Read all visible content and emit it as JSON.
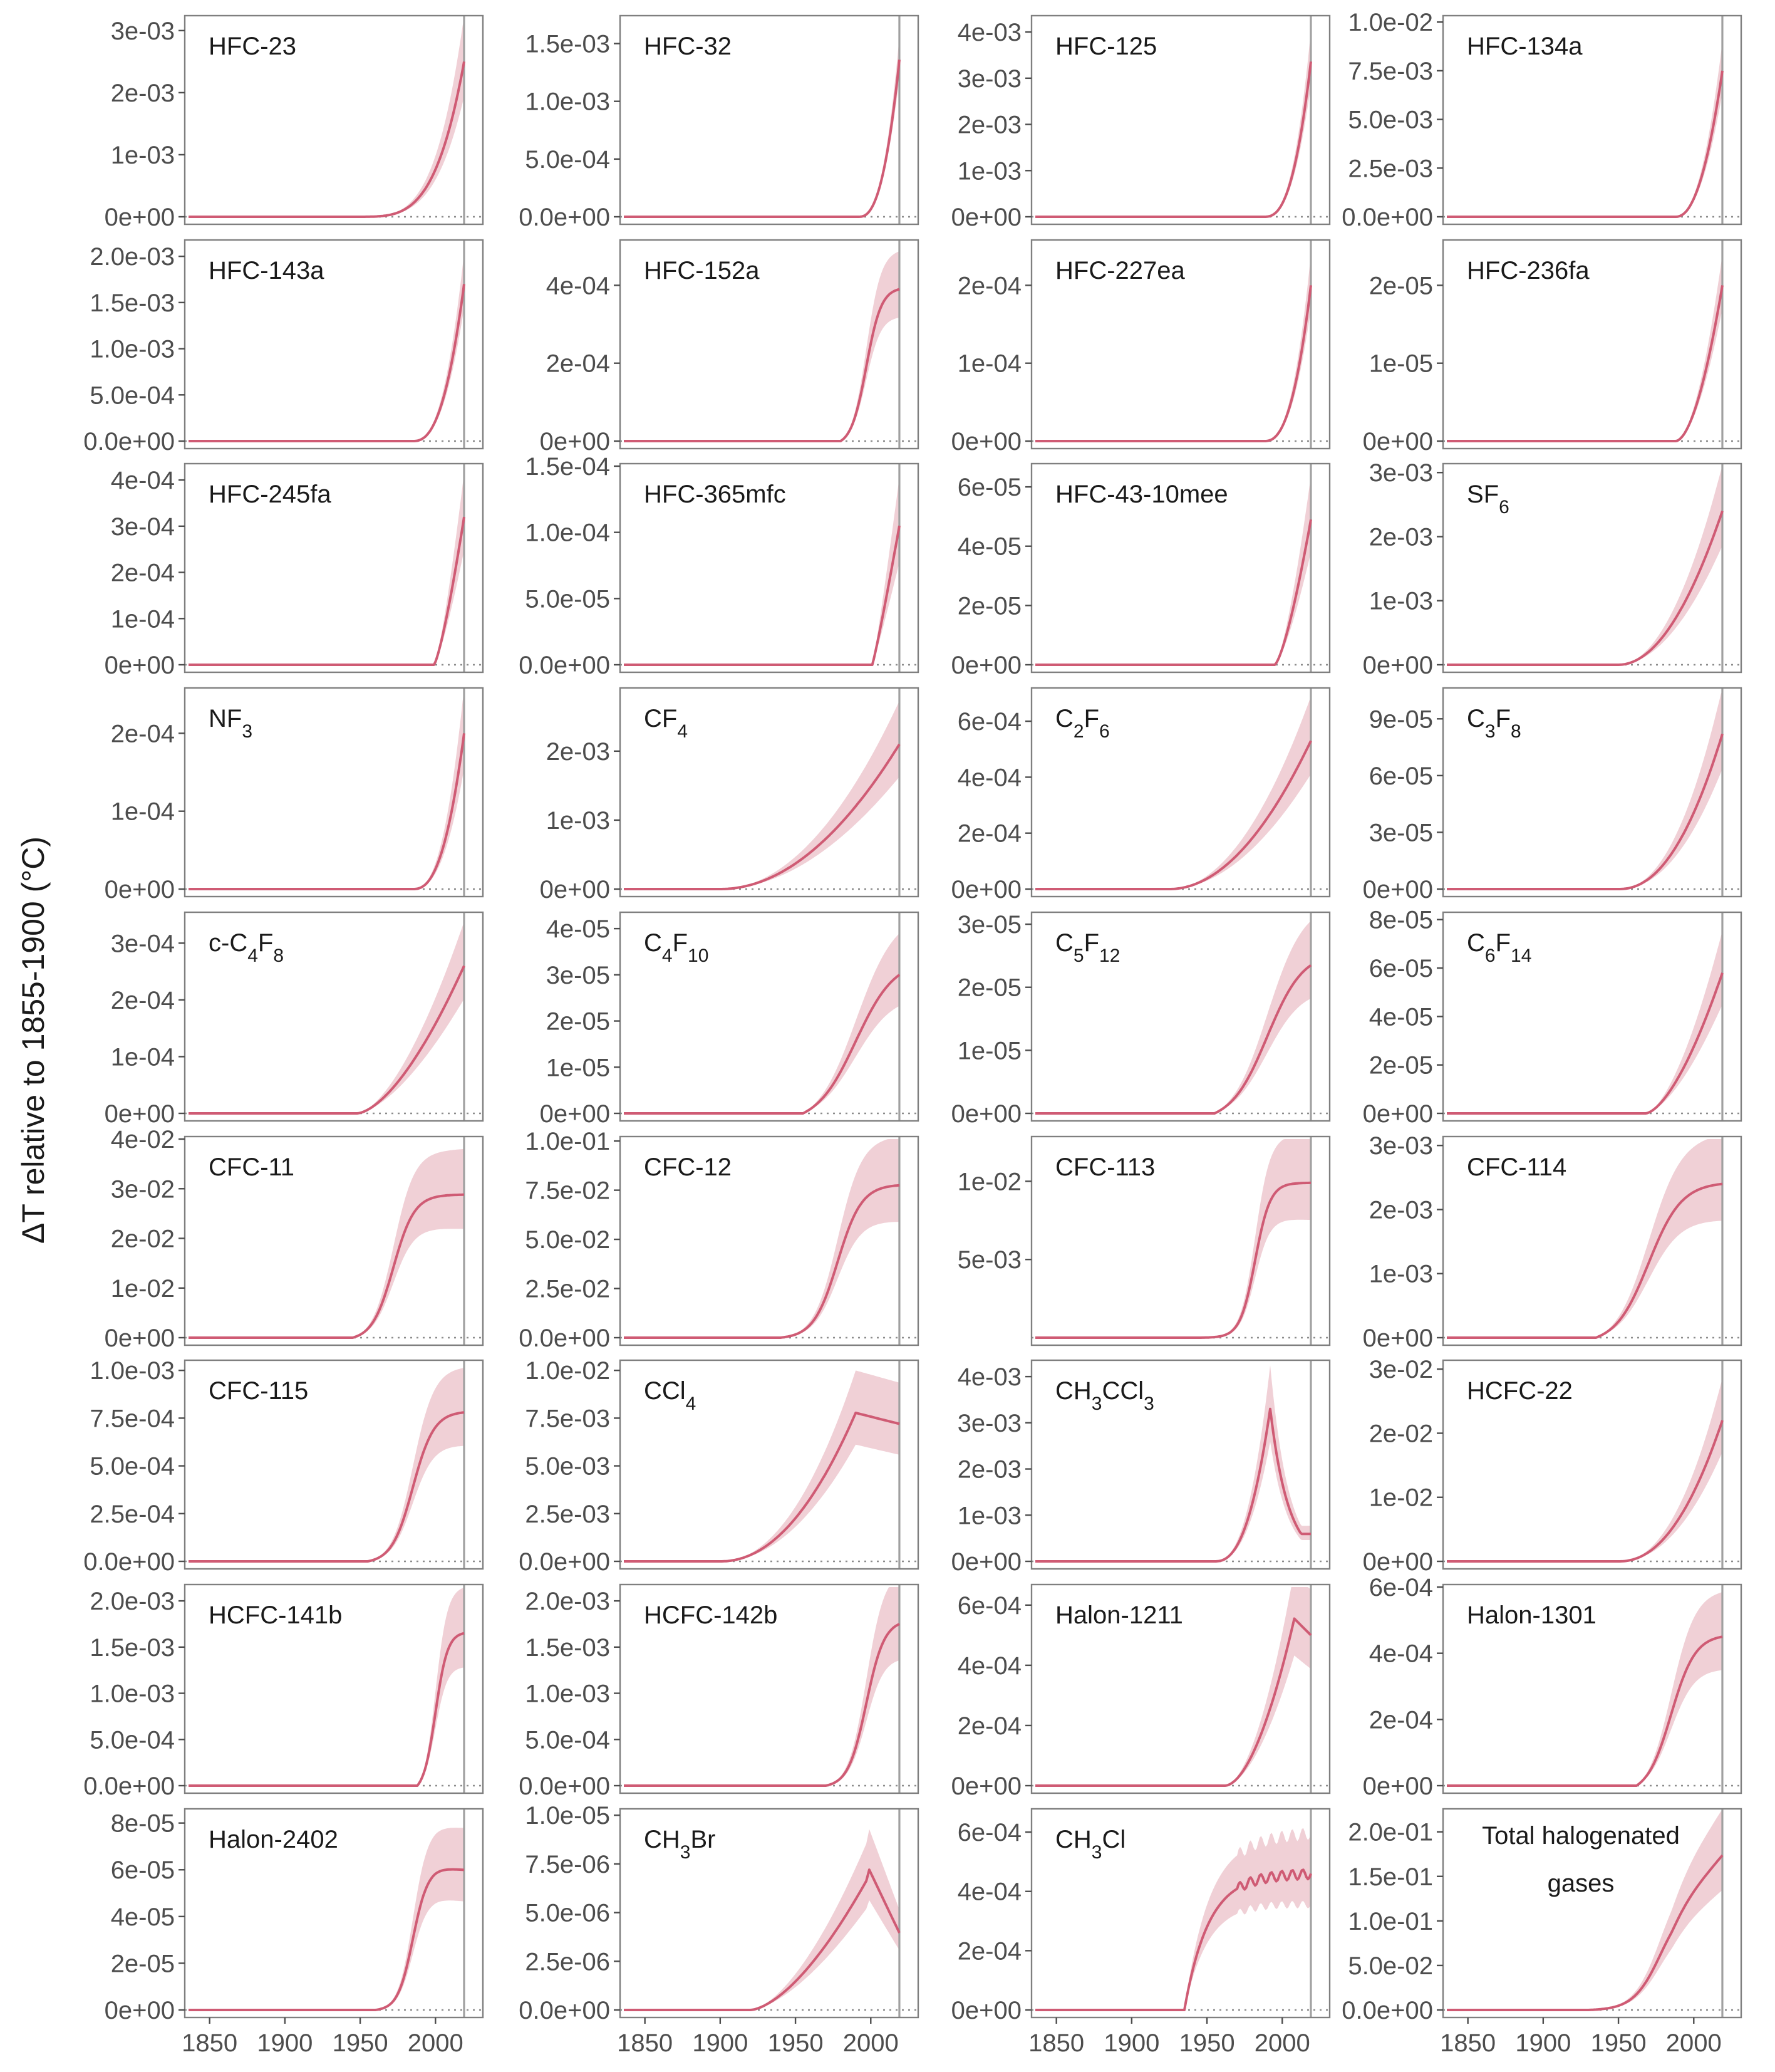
{
  "ylabel": "ΔT relative to 1855-1900 (°C)",
  "x_ticks": [
    "1850",
    "1900",
    "1950",
    "2000"
  ],
  "colors": {
    "band": "#d98a98",
    "line": "#cf5b74",
    "frame": "#7f7f7f",
    "text": "#4d4d4d"
  },
  "chart_data": [
    {
      "type": "line",
      "title": "HFC-23",
      "peak": 0.0025,
      "shape": "ramp",
      "start": 1945,
      "k": 4.0,
      "unc": 0.3,
      "yticks": [
        "0e+00",
        "1e-03",
        "2e-03",
        "3e-03"
      ],
      "ytick_values": [
        0,
        0.001,
        0.002,
        0.003
      ],
      "ylim": [
        0,
        0.0032
      ]
    },
    {
      "type": "line",
      "title": "HFC-32",
      "peak": 0.00136,
      "shape": "ramp",
      "start": 1992,
      "k": 2.5,
      "unc": 0.15,
      "yticks": [
        "0.0e+00",
        "5.0e-04",
        "1.0e-03",
        "1.5e-03"
      ],
      "ytick_values": [
        0,
        0.0005,
        0.001,
        0.0015
      ],
      "ylim": [
        0,
        0.00172
      ]
    },
    {
      "type": "line",
      "title": "HFC-125",
      "peak": 0.00336,
      "shape": "ramp",
      "start": 1988,
      "k": 2.6,
      "unc": 0.2,
      "yticks": [
        "0e+00",
        "1e-03",
        "2e-03",
        "3e-03",
        "4e-03"
      ],
      "ytick_values": [
        0,
        0.001,
        0.002,
        0.003,
        0.004
      ],
      "ylim": [
        0,
        0.0043
      ]
    },
    {
      "type": "line",
      "title": "HFC-134a",
      "peak": 0.0075,
      "shape": "ramp",
      "start": 1988,
      "k": 2.2,
      "unc": 0.2,
      "yticks": [
        "0.0e+00",
        "2.5e-03",
        "5.0e-03",
        "7.5e-03",
        "1.0e-02"
      ],
      "ytick_values": [
        0,
        0.0025,
        0.005,
        0.0075,
        0.01
      ],
      "ylim": [
        0,
        0.0102
      ]
    },
    {
      "type": "line",
      "title": "HFC-143a",
      "peak": 0.0017,
      "shape": "ramp",
      "start": 1985,
      "k": 2.5,
      "unc": 0.2,
      "yticks": [
        "0.0e+00",
        "5.0e-04",
        "1.0e-03",
        "1.5e-03",
        "2.0e-03"
      ],
      "ytick_values": [
        0,
        0.0005,
        0.001,
        0.0015,
        0.002
      ],
      "ylim": [
        0,
        0.00215
      ]
    },
    {
      "type": "line",
      "title": "HFC-152a",
      "peak": 0.00039,
      "shape": "sigmoid",
      "start": 1980,
      "mid": 1997,
      "w": 5,
      "unc": 0.25,
      "yticks": [
        "0e+00",
        "2e-04",
        "4e-04"
      ],
      "ytick_values": [
        0,
        0.0002,
        0.0004
      ],
      "ylim": [
        0,
        0.00051
      ]
    },
    {
      "type": "line",
      "title": "HFC-227ea",
      "peak": 0.0002,
      "shape": "ramp",
      "start": 1988,
      "k": 2.5,
      "unc": 0.2,
      "yticks": [
        "0e+00",
        "1e-04",
        "2e-04"
      ],
      "ytick_values": [
        0,
        0.0001,
        0.0002
      ],
      "ylim": [
        0,
        0.000255
      ]
    },
    {
      "type": "line",
      "title": "HFC-236fa",
      "peak": 2e-05,
      "shape": "ramp",
      "start": 1988,
      "k": 1.8,
      "unc": 0.2,
      "yticks": [
        "0e+00",
        "1e-05",
        "2e-05"
      ],
      "ytick_values": [
        0,
        1e-05,
        2e-05
      ],
      "ylim": [
        0,
        2.55e-05
      ]
    },
    {
      "type": "line",
      "title": "HFC-245fa",
      "peak": 0.00032,
      "shape": "ramp",
      "start": 1999,
      "k": 1.3,
      "unc": 0.3,
      "yticks": [
        "0e+00",
        "1e-04",
        "2e-04",
        "3e-04",
        "4e-04"
      ],
      "ytick_values": [
        0,
        0.0001,
        0.0002,
        0.0003,
        0.0004
      ],
      "ylim": [
        0,
        0.00043
      ]
    },
    {
      "type": "line",
      "title": "HFC-365mfc",
      "peak": 0.000105,
      "shape": "ramp",
      "start": 2001,
      "k": 1.1,
      "unc": 0.35,
      "yticks": [
        "0.0e+00",
        "5.0e-05",
        "1.0e-04",
        "1.5e-04"
      ],
      "ytick_values": [
        0,
        5e-05,
        0.0001,
        0.00015
      ],
      "ylim": [
        0,
        0.00015
      ]
    },
    {
      "type": "line",
      "title": "HFC-43-10mee",
      "peak": 4.9e-05,
      "shape": "ramp",
      "start": 1995,
      "k": 1.4,
      "unc": 0.3,
      "yticks": [
        "0e+00",
        "2e-05",
        "4e-05",
        "6e-05"
      ],
      "ytick_values": [
        0,
        2e-05,
        4e-05,
        6e-05
      ],
      "ylim": [
        0,
        6.7e-05
      ]
    },
    {
      "type": "line",
      "title": "SF6",
      "peak": 0.0024,
      "shape": "ramp",
      "start": 1950,
      "k": 2.0,
      "unc": 0.3,
      "yticks": [
        "0e+00",
        "1e-03",
        "2e-03",
        "3e-03"
      ],
      "ytick_values": [
        0,
        0.001,
        0.002,
        0.003
      ],
      "ylim": [
        0,
        0.0031
      ]
    },
    {
      "type": "line",
      "title": "NF3",
      "peak": 0.0002,
      "shape": "ramp",
      "start": 1985,
      "k": 2.5,
      "unc": 0.3,
      "yticks": [
        "0e+00",
        "1e-04",
        "2e-04"
      ],
      "ytick_values": [
        0,
        0.0001,
        0.0002
      ],
      "ylim": [
        0,
        0.000255
      ]
    },
    {
      "type": "line",
      "title": "CF4",
      "peak": 0.0021,
      "shape": "ramp",
      "start": 1900,
      "k": 2.0,
      "unc": 0.3,
      "yticks": [
        "0e+00",
        "1e-03",
        "2e-03"
      ],
      "ytick_values": [
        0,
        0.001,
        0.002
      ],
      "ylim": [
        0,
        0.00288
      ]
    },
    {
      "type": "line",
      "title": "C2F6",
      "peak": 0.00053,
      "shape": "ramp",
      "start": 1925,
      "k": 2.0,
      "unc": 0.3,
      "yticks": [
        "0e+00",
        "2e-04",
        "4e-04",
        "6e-04"
      ],
      "ytick_values": [
        0,
        0.0002,
        0.0004,
        0.0006
      ],
      "ylim": [
        0,
        0.00071
      ]
    },
    {
      "type": "line",
      "title": "C3F8",
      "peak": 8.2e-05,
      "shape": "ramp",
      "start": 1950,
      "k": 2.2,
      "unc": 0.3,
      "yticks": [
        "0e+00",
        "3e-05",
        "6e-05",
        "9e-05"
      ],
      "ytick_values": [
        0,
        3e-05,
        6e-05,
        9e-05
      ],
      "ylim": [
        0,
        0.000105
      ]
    },
    {
      "type": "line",
      "title": "c-C4F8",
      "peak": 0.00026,
      "shape": "ramp",
      "start": 1948,
      "k": 1.6,
      "unc": 0.3,
      "yticks": [
        "0e+00",
        "1e-04",
        "2e-04",
        "3e-04"
      ],
      "ytick_values": [
        0,
        0.0001,
        0.0002,
        0.0003
      ],
      "ylim": [
        0,
        0.00035
      ]
    },
    {
      "type": "line",
      "title": "C4F10",
      "peak": 3e-05,
      "shape": "sigmoid",
      "start": 1955,
      "mid": 1990,
      "w": 13,
      "unc": 0.3,
      "yticks": [
        "0e+00",
        "1e-05",
        "2e-05",
        "3e-05",
        "4e-05"
      ],
      "ytick_values": [
        0,
        1e-05,
        2e-05,
        3e-05,
        4e-05
      ],
      "ylim": [
        0,
        4.3e-05
      ]
    },
    {
      "type": "line",
      "title": "C5F12",
      "peak": 2.35e-05,
      "shape": "sigmoid",
      "start": 1955,
      "mid": 1990,
      "w": 12,
      "unc": 0.3,
      "yticks": [
        "0e+00",
        "1e-05",
        "2e-05",
        "3e-05"
      ],
      "ytick_values": [
        0,
        1e-05,
        2e-05,
        3e-05
      ],
      "ylim": [
        0,
        3.15e-05
      ]
    },
    {
      "type": "line",
      "title": "C6F14",
      "peak": 5.8e-05,
      "shape": "ramp",
      "start": 1968,
      "k": 1.6,
      "unc": 0.3,
      "yticks": [
        "0e+00",
        "2e-05",
        "4e-05",
        "6e-05",
        "8e-05"
      ],
      "ytick_values": [
        0,
        2e-05,
        4e-05,
        6e-05,
        8e-05
      ],
      "ylim": [
        0,
        8.2e-05
      ]
    },
    {
      "type": "line",
      "title": "CFC-11",
      "peak": 0.0288,
      "shape": "sigmoid",
      "start": 1945,
      "mid": 1972,
      "w": 7,
      "unc": 0.32,
      "yticks": [
        "0e+00",
        "1e-02",
        "2e-02",
        "3e-02",
        "4e-02"
      ],
      "ytick_values": [
        0,
        0.01,
        0.02,
        0.03,
        0.04
      ],
      "ylim": [
        0,
        0.04
      ]
    },
    {
      "type": "line",
      "title": "CFC-12",
      "peak": 0.0775,
      "shape": "sigmoid",
      "start": 1940,
      "mid": 1978,
      "w": 8,
      "unc": 0.32,
      "yticks": [
        "0.0e+00",
        "2.5e-02",
        "5.0e-02",
        "7.5e-02",
        "1.0e-01"
      ],
      "ytick_values": [
        0,
        0.025,
        0.05,
        0.075,
        0.1
      ],
      "ylim": [
        0,
        0.101
      ]
    },
    {
      "type": "line",
      "title": "CFC-113",
      "peak": 0.0099,
      "shape": "sigmoid",
      "start": 1945,
      "mid": 1982,
      "w": 5,
      "unc": 0.32,
      "yticks": [
        "5e-03",
        "1e-02"
      ],
      "ytick_values": [
        0.005,
        0.01
      ],
      "ylim": [
        0,
        0.0127
      ]
    },
    {
      "type": "line",
      "title": "CFC-114",
      "peak": 0.0024,
      "shape": "sigmoid",
      "start": 1935,
      "mid": 1970,
      "w": 11,
      "unc": 0.32,
      "yticks": [
        "0e+00",
        "1e-03",
        "2e-03",
        "3e-03"
      ],
      "ytick_values": [
        0,
        0.001,
        0.002,
        0.003
      ],
      "ylim": [
        0,
        0.0031
      ]
    },
    {
      "type": "line",
      "title": "CFC-115",
      "peak": 0.00078,
      "shape": "sigmoid",
      "start": 1955,
      "mid": 1985,
      "w": 7,
      "unc": 0.3,
      "yticks": [
        "0.0e+00",
        "2.5e-04",
        "5.0e-04",
        "7.5e-04",
        "1.0e-03"
      ],
      "ytick_values": [
        0,
        0.00025,
        0.0005,
        0.00075,
        0.001
      ],
      "ylim": [
        0,
        0.00104
      ]
    },
    {
      "type": "line",
      "title": "CCl4",
      "peak": 0.0072,
      "shape": "ccl4",
      "start": 1900,
      "unc": 0.3,
      "yticks": [
        "0.0e+00",
        "2.5e-03",
        "5.0e-03",
        "7.5e-03",
        "1.0e-02"
      ],
      "ytick_values": [
        0,
        0.0025,
        0.005,
        0.0075,
        0.01
      ],
      "ylim": [
        0,
        0.0104
      ]
    },
    {
      "type": "line",
      "title": "CH3CCl3",
      "peak": 0.0033,
      "shape": "ch3ccl3",
      "start": 1955,
      "unc": 0.3,
      "yticks": [
        "0e+00",
        "1e-03",
        "2e-03",
        "3e-03",
        "4e-03"
      ],
      "ytick_values": [
        0,
        0.001,
        0.002,
        0.003,
        0.004
      ],
      "ylim": [
        0,
        0.0043
      ]
    },
    {
      "type": "line",
      "title": "HCFC-22",
      "peak": 0.022,
      "shape": "ramp",
      "start": 1950,
      "k": 2.2,
      "unc": 0.3,
      "yticks": [
        "0e+00",
        "1e-02",
        "2e-02",
        "3e-02"
      ],
      "ytick_values": [
        0,
        0.01,
        0.02,
        0.03
      ],
      "ylim": [
        0,
        0.031
      ]
    },
    {
      "type": "line",
      "title": "HCFC-141b",
      "peak": 0.00165,
      "shape": "sigmoid",
      "start": 1988,
      "mid": 2000,
      "w": 4,
      "unc": 0.3,
      "yticks": [
        "0.0e+00",
        "5.0e-04",
        "1.0e-03",
        "1.5e-03",
        "2.0e-03"
      ],
      "ytick_values": [
        0,
        0.0005,
        0.001,
        0.0015,
        0.002
      ],
      "ylim": [
        0,
        0.00215
      ]
    },
    {
      "type": "line",
      "title": "HCFC-142b",
      "peak": 0.00175,
      "shape": "sigmoid",
      "start": 1970,
      "mid": 1997,
      "w": 6,
      "unc": 0.3,
      "yticks": [
        "0.0e+00",
        "5.0e-04",
        "1.0e-03",
        "1.5e-03",
        "2.0e-03"
      ],
      "ytick_values": [
        0,
        0.0005,
        0.001,
        0.0015,
        0.002
      ],
      "ylim": [
        0,
        0.00215
      ]
    },
    {
      "type": "line",
      "title": "Halon-1211",
      "peak": 0.0005,
      "shape": "halon1211",
      "start": 1962,
      "unc": 0.3,
      "yticks": [
        "0e+00",
        "2e-04",
        "4e-04",
        "6e-04"
      ],
      "ytick_values": [
        0,
        0.0002,
        0.0004,
        0.0006
      ],
      "ylim": [
        0,
        0.00066
      ]
    },
    {
      "type": "line",
      "title": "Halon-1301",
      "peak": 0.00045,
      "shape": "sigmoid",
      "start": 1962,
      "mid": 1985,
      "w": 8,
      "unc": 0.3,
      "yticks": [
        "0e+00",
        "2e-04",
        "4e-04",
        "6e-04"
      ],
      "ytick_values": [
        0,
        0.0002,
        0.0004,
        0.0006
      ],
      "ylim": [
        0,
        0.0006
      ]
    },
    {
      "type": "line",
      "title": "Halon-2402",
      "peak": 6e-05,
      "shape": "halon2402",
      "start": 1960,
      "unc": 0.3,
      "yticks": [
        "0e+00",
        "2e-05",
        "4e-05",
        "6e-05",
        "8e-05"
      ],
      "ytick_values": [
        0,
        2e-05,
        4e-05,
        6e-05,
        8e-05
      ],
      "ylim": [
        0,
        8.5e-05
      ]
    },
    {
      "type": "line",
      "title": "CH3Br",
      "peak": 7.2e-06,
      "shape": "ch3br",
      "start": 1920,
      "unc": 0.3,
      "yticks": [
        "0.0e+00",
        "2.5e-06",
        "5.0e-06",
        "7.5e-06",
        "1.0e-05"
      ],
      "ytick_values": [
        0,
        2.5e-06,
        5e-06,
        7.5e-06,
        1e-05
      ],
      "ylim": [
        0,
        1.02e-05
      ]
    },
    {
      "type": "line",
      "title": "CH3Cl",
      "peak": 0.00047,
      "shape": "ch3cl",
      "start": 1935,
      "unc": 0.3,
      "yticks": [
        "0e+00",
        "2e-04",
        "4e-04",
        "6e-04"
      ],
      "ytick_values": [
        0,
        0.0002,
        0.0004,
        0.0006
      ],
      "ylim": [
        0,
        0.00067
      ]
    },
    {
      "type": "line",
      "title": "Total halogenated gases",
      "peak": 0.175,
      "shape": "total",
      "start": 1930,
      "unc": 0.3,
      "yticks": [
        "0.0e+00",
        "5.0e-02",
        "1.0e-01",
        "1.5e-01",
        "2.0e-01"
      ],
      "ytick_values": [
        0,
        0.05,
        0.1,
        0.15,
        0.2
      ],
      "ylim": [
        0,
        0.223
      ]
    }
  ]
}
